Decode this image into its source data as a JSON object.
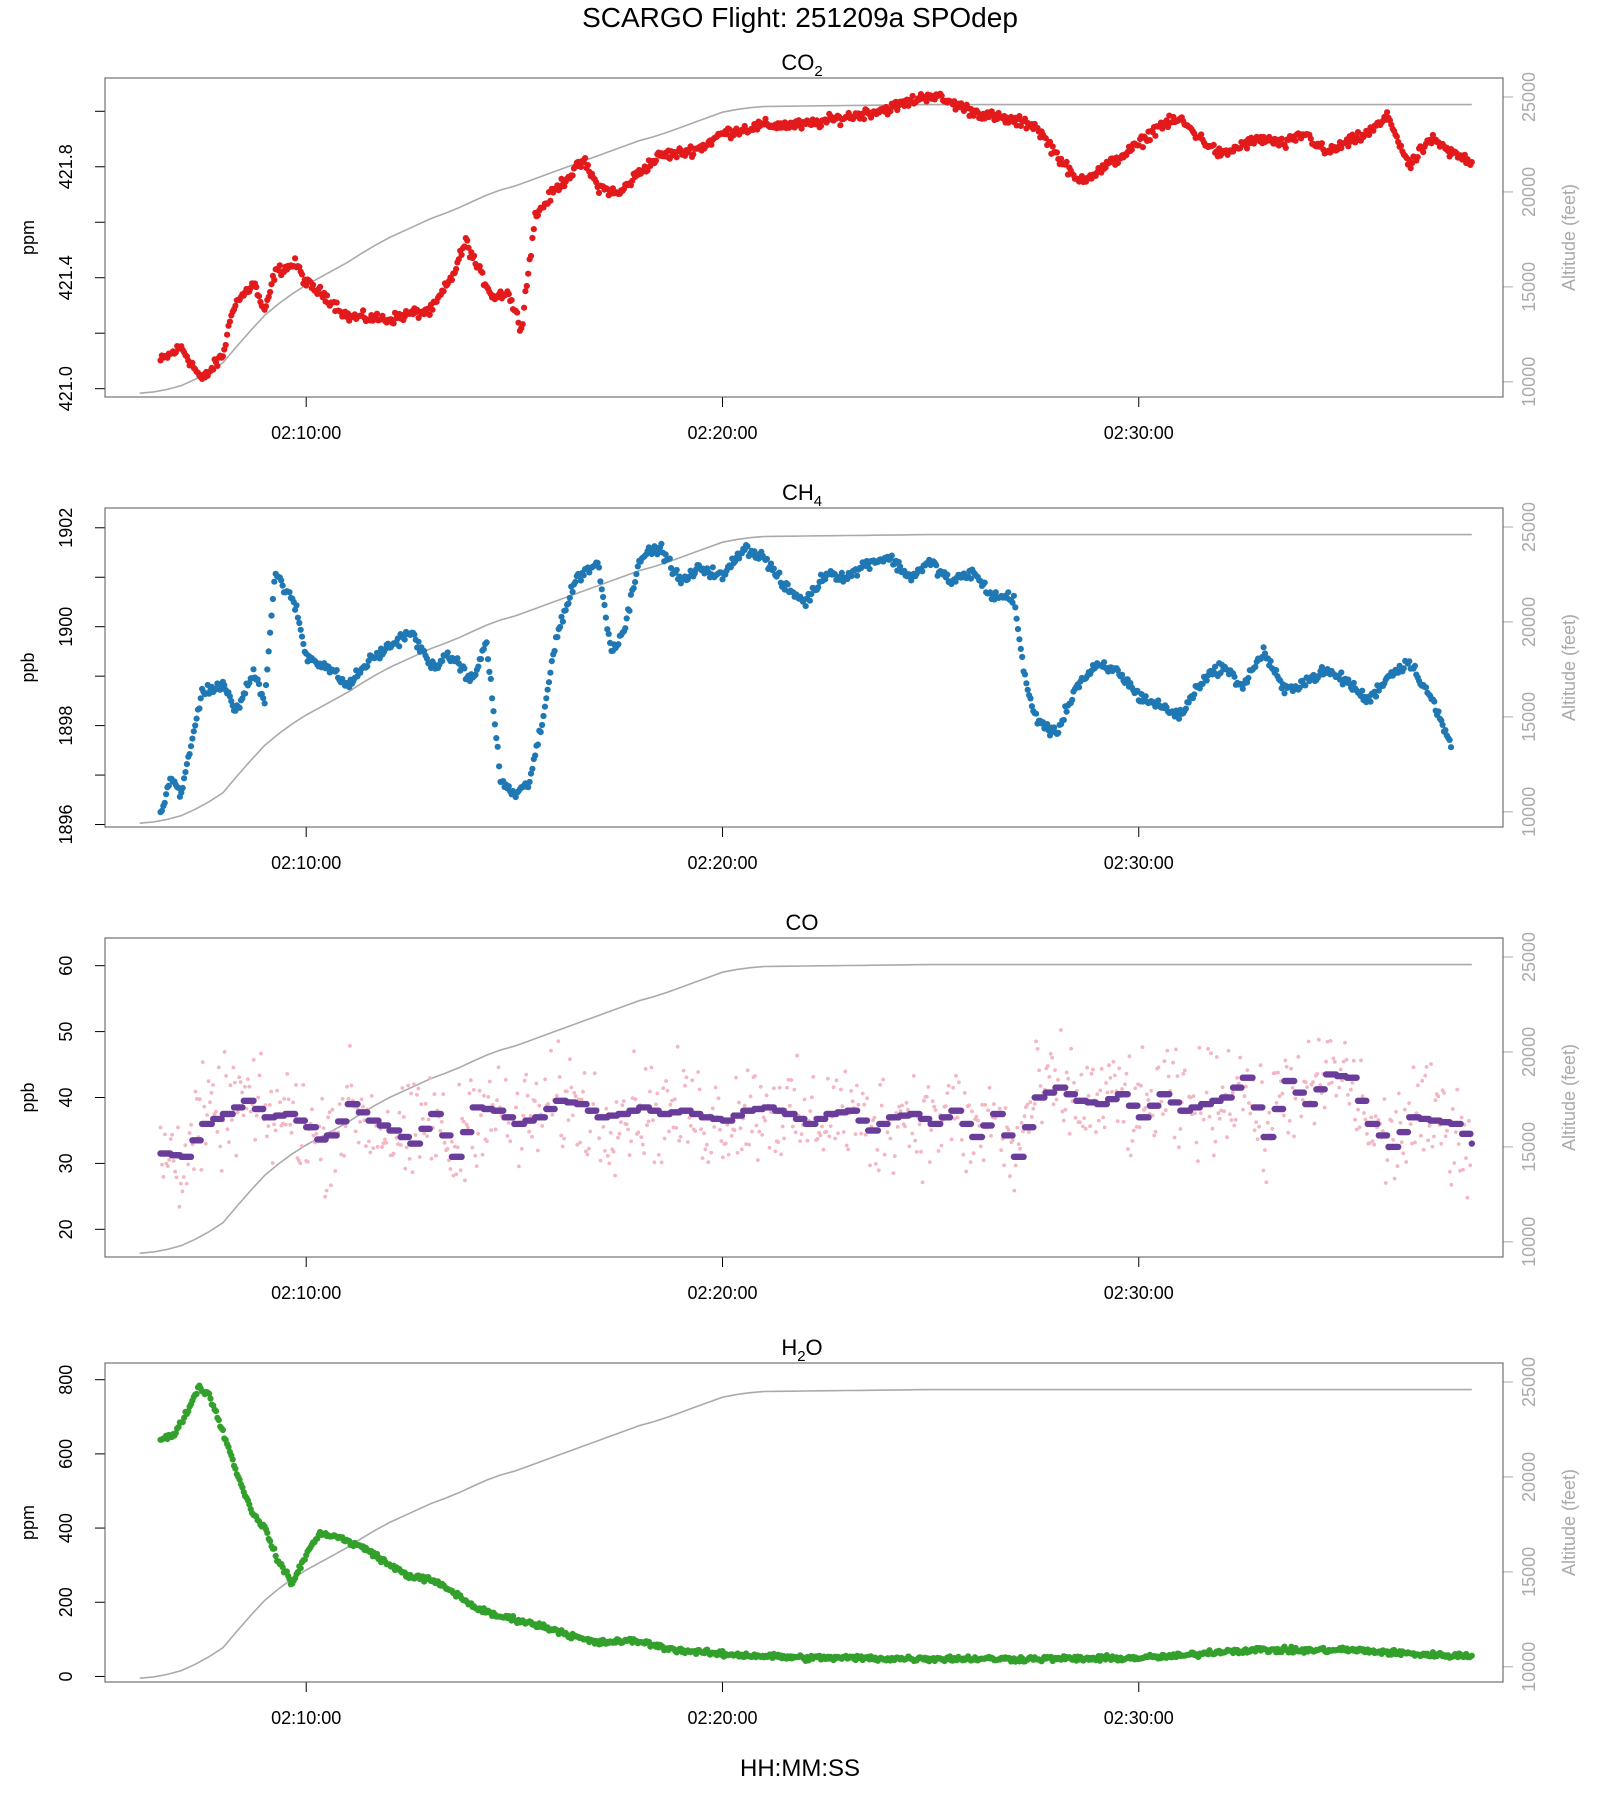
{
  "title": "SCARGO Flight: 251209a  SPOdep",
  "xlabel": "HH:MM:SS",
  "colors": {
    "altitude": "#aaaaaa",
    "co2": "#e31a1c",
    "ch4": "#1f78b4",
    "co_raw": "#f4b6c2",
    "co_avg": "#6a3d9a",
    "h2o": "#33a02c"
  },
  "chart_data": [
    {
      "type": "scatter",
      "title_main": "CO",
      "title_sub": "2",
      "title_tail": "",
      "ylabel": "ppm",
      "ylim": [
        420.97,
        422.12
      ],
      "yticks": [
        421.0,
        421.4,
        421.8
      ],
      "yticks_minor": [
        421.2,
        421.6,
        422.0
      ],
      "ytick_labels": [
        "421.0",
        "421.4",
        "421.8"
      ],
      "xlim": [
        "02:05:10",
        "02:38:45"
      ],
      "xticks": [
        "02:10:00",
        "02:20:00",
        "02:30:00"
      ],
      "alt_label": "Altitude (feet)",
      "alt_lim": [
        9200,
        26000
      ],
      "alt_ticks": [
        "10000",
        "15000",
        "20000",
        "25000"
      ],
      "series_color": "co2",
      "keypoints": [
        [
          "02:06:30",
          421.1
        ],
        [
          "02:07:00",
          421.15
        ],
        [
          "02:07:30",
          421.03
        ],
        [
          "02:08:00",
          421.12
        ],
        [
          "02:08:15",
          421.3
        ],
        [
          "02:08:45",
          421.38
        ],
        [
          "02:09:00",
          421.27
        ],
        [
          "02:09:15",
          421.42
        ],
        [
          "02:09:45",
          421.45
        ],
        [
          "02:10:00",
          421.38
        ],
        [
          "02:10:30",
          421.33
        ],
        [
          "02:11:00",
          421.26
        ],
        [
          "02:12:00",
          421.25
        ],
        [
          "02:12:30",
          421.27
        ],
        [
          "02:13:00",
          421.28
        ],
        [
          "02:13:30",
          421.4
        ],
        [
          "02:13:50",
          421.53
        ],
        [
          "02:14:10",
          421.42
        ],
        [
          "02:14:30",
          421.33
        ],
        [
          "02:14:50",
          421.35
        ],
        [
          "02:15:10",
          421.22
        ],
        [
          "02:15:30",
          421.62
        ],
        [
          "02:16:00",
          421.72
        ],
        [
          "02:16:40",
          421.82
        ],
        [
          "02:17:00",
          421.73
        ],
        [
          "02:17:30",
          421.7
        ],
        [
          "02:18:00",
          421.78
        ],
        [
          "02:18:30",
          421.84
        ],
        [
          "02:19:00",
          421.85
        ],
        [
          "02:19:30",
          421.87
        ],
        [
          "02:20:00",
          421.92
        ],
        [
          "02:21:00",
          421.95
        ],
        [
          "02:22:00",
          421.95
        ],
        [
          "02:23:00",
          421.98
        ],
        [
          "02:24:00",
          422.01
        ],
        [
          "02:25:00",
          422.06
        ],
        [
          "02:25:30",
          422.03
        ],
        [
          "02:26:00",
          422.0
        ],
        [
          "02:26:30",
          421.98
        ],
        [
          "02:27:30",
          421.95
        ],
        [
          "02:28:00",
          421.85
        ],
        [
          "02:28:30",
          421.75
        ],
        [
          "02:29:00",
          421.78
        ],
        [
          "02:30:00",
          421.88
        ],
        [
          "02:30:30",
          421.95
        ],
        [
          "02:31:00",
          421.97
        ],
        [
          "02:31:30",
          421.9
        ],
        [
          "02:32:00",
          421.84
        ],
        [
          "02:32:30",
          421.88
        ],
        [
          "02:33:00",
          421.9
        ],
        [
          "02:33:30",
          421.88
        ],
        [
          "02:34:00",
          421.92
        ],
        [
          "02:34:30",
          421.85
        ],
        [
          "02:35:30",
          421.92
        ],
        [
          "02:36:00",
          421.98
        ],
        [
          "02:36:30",
          421.8
        ],
        [
          "02:37:00",
          421.9
        ],
        [
          "02:37:30",
          421.85
        ],
        [
          "02:38:00",
          421.82
        ]
      ]
    },
    {
      "type": "scatter",
      "title_main": "CH",
      "title_sub": "4",
      "title_tail": "",
      "ylabel": "ppb",
      "ylim": [
        1895.95,
        1902.4
      ],
      "yticks": [
        1896,
        1898,
        1900,
        1902
      ],
      "yticks_minor": [
        1897,
        1899,
        1901
      ],
      "ytick_labels": [
        "1896",
        "1898",
        "1900",
        "1902"
      ],
      "xlim": [
        "02:05:10",
        "02:38:45"
      ],
      "xticks": [
        "02:10:00",
        "02:20:00",
        "02:30:00"
      ],
      "alt_label": "Altitude (feet)",
      "alt_lim": [
        9200,
        26000
      ],
      "alt_ticks": [
        "10000",
        "15000",
        "20000",
        "25000"
      ],
      "series_color": "ch4",
      "keypoints": [
        [
          "02:06:30",
          1896.2
        ],
        [
          "02:06:45",
          1897.0
        ],
        [
          "02:07:00",
          1896.6
        ],
        [
          "02:07:30",
          1898.7
        ],
        [
          "02:08:00",
          1898.8
        ],
        [
          "02:08:20",
          1898.3
        ],
        [
          "02:08:45",
          1899.1
        ],
        [
          "02:09:00",
          1898.5
        ],
        [
          "02:09:15",
          1901.1
        ],
        [
          "02:09:45",
          1900.4
        ],
        [
          "02:10:00",
          1899.4
        ],
        [
          "02:10:30",
          1899.2
        ],
        [
          "02:11:00",
          1898.8
        ],
        [
          "02:11:30",
          1899.3
        ],
        [
          "02:12:00",
          1899.6
        ],
        [
          "02:12:30",
          1899.9
        ],
        [
          "02:13:00",
          1899.2
        ],
        [
          "02:13:30",
          1899.4
        ],
        [
          "02:14:00",
          1898.9
        ],
        [
          "02:14:20",
          1899.7
        ],
        [
          "02:14:40",
          1896.9
        ],
        [
          "02:15:00",
          1896.6
        ],
        [
          "02:15:20",
          1896.8
        ],
        [
          "02:15:40",
          1898.0
        ],
        [
          "02:16:00",
          1899.8
        ],
        [
          "02:16:30",
          1901.0
        ],
        [
          "02:17:00",
          1901.3
        ],
        [
          "02:17:20",
          1899.5
        ],
        [
          "02:17:40",
          1900.0
        ],
        [
          "02:18:00",
          1901.4
        ],
        [
          "02:18:30",
          1901.6
        ],
        [
          "02:19:00",
          1900.9
        ],
        [
          "02:19:30",
          1901.2
        ],
        [
          "02:20:00",
          1901.0
        ],
        [
          "02:20:30",
          1901.6
        ],
        [
          "02:21:00",
          1901.4
        ],
        [
          "02:21:30",
          1900.8
        ],
        [
          "02:22:00",
          1900.5
        ],
        [
          "02:22:30",
          1901.1
        ],
        [
          "02:23:00",
          1901.0
        ],
        [
          "02:23:30",
          1901.3
        ],
        [
          "02:24:00",
          1901.4
        ],
        [
          "02:24:30",
          1901.0
        ],
        [
          "02:25:00",
          1901.3
        ],
        [
          "02:25:30",
          1900.9
        ],
        [
          "02:26:00",
          1901.1
        ],
        [
          "02:26:30",
          1900.6
        ],
        [
          "02:27:00",
          1900.6
        ],
        [
          "02:27:15",
          1899.0
        ],
        [
          "02:27:30",
          1898.2
        ],
        [
          "02:28:00",
          1897.8
        ],
        [
          "02:28:30",
          1898.8
        ],
        [
          "02:29:00",
          1899.2
        ],
        [
          "02:29:30",
          1899.1
        ],
        [
          "02:30:00",
          1898.6
        ],
        [
          "02:30:30",
          1898.4
        ],
        [
          "02:31:00",
          1898.2
        ],
        [
          "02:31:30",
          1898.9
        ],
        [
          "02:32:00",
          1899.2
        ],
        [
          "02:32:30",
          1898.8
        ],
        [
          "02:33:00",
          1899.5
        ],
        [
          "02:33:30",
          1898.7
        ],
        [
          "02:34:00",
          1898.9
        ],
        [
          "02:34:30",
          1899.1
        ],
        [
          "02:35:00",
          1898.9
        ],
        [
          "02:35:30",
          1898.5
        ],
        [
          "02:36:00",
          1899.0
        ],
        [
          "02:36:30",
          1899.3
        ],
        [
          "02:37:00",
          1898.6
        ],
        [
          "02:37:30",
          1897.6
        ]
      ]
    },
    {
      "type": "scatter",
      "title_main": "CO",
      "title_sub": "",
      "title_tail": "",
      "ylabel": "ppb",
      "ylim": [
        15.8,
        64.2
      ],
      "yticks": [
        20,
        30,
        40,
        50,
        60
      ],
      "yticks_minor": [],
      "ytick_labels": [
        "20",
        "30",
        "40",
        "50",
        "60"
      ],
      "xlim": [
        "02:05:10",
        "02:38:45"
      ],
      "xticks": [
        "02:10:00",
        "02:20:00",
        "02:30:00"
      ],
      "alt_label": "Altitude (feet)",
      "alt_lim": [
        9200,
        26000
      ],
      "alt_ticks": [
        "10000",
        "15000",
        "20000",
        "25000"
      ],
      "series_color": "co_avg",
      "raw_color": "co_raw",
      "keypoints": [
        [
          "02:06:30",
          31.5
        ],
        [
          "02:07:00",
          31.0
        ],
        [
          "02:07:30",
          36.0
        ],
        [
          "02:08:00",
          37.5
        ],
        [
          "02:08:30",
          39.5
        ],
        [
          "02:09:00",
          37.0
        ],
        [
          "02:09:30",
          37.5
        ],
        [
          "02:10:00",
          35.5
        ],
        [
          "02:10:20",
          33.0
        ],
        [
          "02:10:40",
          35.5
        ],
        [
          "02:11:00",
          39.0
        ],
        [
          "02:11:30",
          36.5
        ],
        [
          "02:12:00",
          35.0
        ],
        [
          "02:12:30",
          33.0
        ],
        [
          "02:13:00",
          37.5
        ],
        [
          "02:13:30",
          31.0
        ],
        [
          "02:14:00",
          38.5
        ],
        [
          "02:14:30",
          38.0
        ],
        [
          "02:15:00",
          36.0
        ],
        [
          "02:15:30",
          37.0
        ],
        [
          "02:16:00",
          39.5
        ],
        [
          "02:16:30",
          39.0
        ],
        [
          "02:17:00",
          37.0
        ],
        [
          "02:17:30",
          37.5
        ],
        [
          "02:18:00",
          38.5
        ],
        [
          "02:18:30",
          37.5
        ],
        [
          "02:19:00",
          38.0
        ],
        [
          "02:19:30",
          37.0
        ],
        [
          "02:20:00",
          36.5
        ],
        [
          "02:20:30",
          38.0
        ],
        [
          "02:21:00",
          38.5
        ],
        [
          "02:21:30",
          37.5
        ],
        [
          "02:22:00",
          36.0
        ],
        [
          "02:22:30",
          37.5
        ],
        [
          "02:23:00",
          38.0
        ],
        [
          "02:23:30",
          35.0
        ],
        [
          "02:24:00",
          37.0
        ],
        [
          "02:24:30",
          37.5
        ],
        [
          "02:25:00",
          36.0
        ],
        [
          "02:25:30",
          38.0
        ],
        [
          "02:26:00",
          34.0
        ],
        [
          "02:26:30",
          37.5
        ],
        [
          "02:27:00",
          31.0
        ],
        [
          "02:27:30",
          40.0
        ],
        [
          "02:28:00",
          41.5
        ],
        [
          "02:28:30",
          39.5
        ],
        [
          "02:29:00",
          39.0
        ],
        [
          "02:29:30",
          40.5
        ],
        [
          "02:30:00",
          37.0
        ],
        [
          "02:30:30",
          40.5
        ],
        [
          "02:31:00",
          38.0
        ],
        [
          "02:31:30",
          39.0
        ],
        [
          "02:32:00",
          40.0
        ],
        [
          "02:32:30",
          43.0
        ],
        [
          "02:33:00",
          34.0
        ],
        [
          "02:33:30",
          42.5
        ],
        [
          "02:34:00",
          39.0
        ],
        [
          "02:34:30",
          43.5
        ],
        [
          "02:35:00",
          43.0
        ],
        [
          "02:35:30",
          36.0
        ],
        [
          "02:36:00",
          32.5
        ],
        [
          "02:36:30",
          37.0
        ],
        [
          "02:37:00",
          36.5
        ],
        [
          "02:37:30",
          36.0
        ],
        [
          "02:38:00",
          33.0
        ]
      ]
    },
    {
      "type": "scatter",
      "title_main": "H",
      "title_sub": "2",
      "title_tail": "O",
      "ylabel": "ppm",
      "ylim": [
        -15,
        845
      ],
      "yticks": [
        0,
        200,
        400,
        600,
        800
      ],
      "yticks_minor": [],
      "ytick_labels": [
        "0",
        "200",
        "400",
        "600",
        "800"
      ],
      "xlim": [
        "02:05:10",
        "02:38:45"
      ],
      "xticks": [
        "02:10:00",
        "02:20:00",
        "02:30:00"
      ],
      "alt_label": "Altitude (feet)",
      "alt_lim": [
        9200,
        26000
      ],
      "alt_ticks": [
        "10000",
        "15000",
        "20000",
        "25000"
      ],
      "series_color": "h2o",
      "keypoints": [
        [
          "02:06:30",
          640
        ],
        [
          "02:06:50",
          650
        ],
        [
          "02:07:10",
          720
        ],
        [
          "02:07:25",
          780
        ],
        [
          "02:07:40",
          760
        ],
        [
          "02:08:00",
          660
        ],
        [
          "02:08:20",
          550
        ],
        [
          "02:08:40",
          450
        ],
        [
          "02:09:00",
          400
        ],
        [
          "02:09:20",
          310
        ],
        [
          "02:09:40",
          250
        ],
        [
          "02:10:00",
          330
        ],
        [
          "02:10:20",
          385
        ],
        [
          "02:10:40",
          380
        ],
        [
          "02:11:30",
          340
        ],
        [
          "02:12:00",
          300
        ],
        [
          "02:12:30",
          270
        ],
        [
          "02:13:00",
          260
        ],
        [
          "02:13:30",
          230
        ],
        [
          "02:14:00",
          190
        ],
        [
          "02:14:30",
          165
        ],
        [
          "02:15:00",
          155
        ],
        [
          "02:15:30",
          140
        ],
        [
          "02:16:00",
          125
        ],
        [
          "02:16:30",
          105
        ],
        [
          "02:17:00",
          90
        ],
        [
          "02:17:30",
          95
        ],
        [
          "02:18:00",
          95
        ],
        [
          "02:18:30",
          80
        ],
        [
          "02:19:00",
          70
        ],
        [
          "02:20:00",
          60
        ],
        [
          "02:21:00",
          55
        ],
        [
          "02:22:00",
          50
        ],
        [
          "02:23:00",
          50
        ],
        [
          "02:24:00",
          48
        ],
        [
          "02:25:00",
          48
        ],
        [
          "02:26:00",
          48
        ],
        [
          "02:27:00",
          47
        ],
        [
          "02:28:00",
          48
        ],
        [
          "02:29:00",
          48
        ],
        [
          "02:30:00",
          50
        ],
        [
          "02:31:00",
          55
        ],
        [
          "02:32:00",
          68
        ],
        [
          "02:33:00",
          72
        ],
        [
          "02:34:00",
          70
        ],
        [
          "02:35:00",
          72
        ],
        [
          "02:36:00",
          65
        ],
        [
          "02:37:00",
          58
        ],
        [
          "02:38:00",
          55
        ]
      ]
    }
  ],
  "altitude_profile": [
    [
      "02:06:00",
      9400
    ],
    [
      "02:06:30",
      9500
    ],
    [
      "02:07:00",
      9800
    ],
    [
      "02:07:30",
      10300
    ],
    [
      "02:08:00",
      11000
    ],
    [
      "02:08:30",
      12300
    ],
    [
      "02:09:00",
      13500
    ],
    [
      "02:09:30",
      14400
    ],
    [
      "02:10:00",
      15100
    ],
    [
      "02:10:30",
      15700
    ],
    [
      "02:11:00",
      16300
    ],
    [
      "02:11:30",
      17000
    ],
    [
      "02:12:00",
      17600
    ],
    [
      "02:12:30",
      18100
    ],
    [
      "02:13:00",
      18600
    ],
    [
      "02:13:30",
      19000
    ],
    [
      "02:14:00",
      19500
    ],
    [
      "02:14:30",
      20000
    ],
    [
      "02:15:00",
      20300
    ],
    [
      "02:15:30",
      20700
    ],
    [
      "02:16:00",
      21100
    ],
    [
      "02:16:30",
      21500
    ],
    [
      "02:17:00",
      21900
    ],
    [
      "02:17:30",
      22300
    ],
    [
      "02:18:00",
      22700
    ],
    [
      "02:18:30",
      23000
    ],
    [
      "02:19:00",
      23400
    ],
    [
      "02:19:30",
      23800
    ],
    [
      "02:20:00",
      24200
    ],
    [
      "02:20:30",
      24400
    ],
    [
      "02:21:00",
      24500
    ],
    [
      "02:23:00",
      24550
    ],
    [
      "02:25:00",
      24600
    ],
    [
      "02:30:00",
      24600
    ],
    [
      "02:35:00",
      24600
    ],
    [
      "02:38:00",
      24600
    ]
  ]
}
